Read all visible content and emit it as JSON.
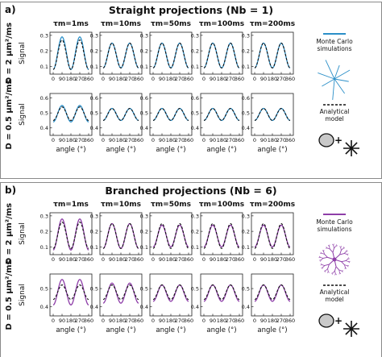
{
  "figure": {
    "panels": [
      {
        "key": "a",
        "label": "a)",
        "title": "Straight projections (Nb = 1)",
        "sim_color": "#2b8fc8",
        "illustration": "straight-projections-cell",
        "legend": {
          "sim": "Monte Carlo simulations",
          "model": "Analytical model"
        },
        "rows": [
          {
            "d_label": "D = 2 μm²/ms",
            "ylabel": "Signal"
          },
          {
            "d_label": "D = 0.5 μm²/ms",
            "ylabel": "Signal"
          }
        ]
      },
      {
        "key": "b",
        "label": "b)",
        "title": "Branched projections (Nb = 6)",
        "sim_color": "#8e3ea8",
        "illustration": "branched-projections-cell",
        "legend": {
          "sim": "Monte Carlo simulations",
          "model": "Analytical model"
        },
        "rows": [
          {
            "d_label": "D = 2 μm²/ms",
            "ylabel": "Signal"
          },
          {
            "d_label": "D = 0.5 μm²/ms",
            "ylabel": "Signal"
          }
        ]
      }
    ],
    "columns": [
      "τm=1ms",
      "τm=10ms",
      "τm=50ms",
      "τm=100ms",
      "τm=200ms"
    ],
    "xlabel": "angle (°)",
    "xticks": [
      "0",
      "90",
      "180",
      "270",
      "360"
    ]
  },
  "chart_data": [
    {
      "panel": "a",
      "row": "D = 2 μm²/ms",
      "type": "line",
      "x": [
        0,
        90,
        180,
        270,
        360
      ],
      "xlim": [
        0,
        360
      ],
      "yticks": [
        "0.1",
        "0.2",
        "0.3"
      ],
      "ylim": [
        0.05,
        0.32
      ],
      "series": [
        {
          "name": "Monte Carlo simulations",
          "columns": [
            {
              "max": 0.29,
              "min": 0.08
            },
            {
              "max": 0.25,
              "min": 0.09
            },
            {
              "max": 0.25,
              "min": 0.09
            },
            {
              "max": 0.25,
              "min": 0.09
            },
            {
              "max": 0.25,
              "min": 0.09
            }
          ]
        },
        {
          "name": "Analytical model",
          "columns": [
            {
              "max": 0.27,
              "min": 0.08
            },
            {
              "max": 0.25,
              "min": 0.09
            },
            {
              "max": 0.25,
              "min": 0.09
            },
            {
              "max": 0.25,
              "min": 0.09
            },
            {
              "max": 0.25,
              "min": 0.09
            }
          ]
        }
      ]
    },
    {
      "panel": "a",
      "row": "D = 0.5 μm²/ms",
      "type": "line",
      "x": [
        0,
        90,
        180,
        270,
        360
      ],
      "xlim": [
        0,
        360
      ],
      "yticks": [
        "0.4",
        "0.5",
        "0.6"
      ],
      "ylim": [
        0.35,
        0.63
      ],
      "series": [
        {
          "name": "Monte Carlo simulations",
          "columns": [
            {
              "max": 0.55,
              "min": 0.44
            },
            {
              "max": 0.53,
              "min": 0.45
            },
            {
              "max": 0.53,
              "min": 0.45
            },
            {
              "max": 0.53,
              "min": 0.45
            },
            {
              "max": 0.53,
              "min": 0.45
            }
          ]
        },
        {
          "name": "Analytical model",
          "columns": [
            {
              "max": 0.54,
              "min": 0.45
            },
            {
              "max": 0.53,
              "min": 0.45
            },
            {
              "max": 0.53,
              "min": 0.45
            },
            {
              "max": 0.53,
              "min": 0.45
            },
            {
              "max": 0.53,
              "min": 0.45
            }
          ]
        }
      ]
    },
    {
      "panel": "b",
      "row": "D = 2 μm²/ms",
      "type": "line",
      "x": [
        0,
        90,
        180,
        270,
        360
      ],
      "xlim": [
        0,
        360
      ],
      "yticks": [
        "0.1",
        "0.2",
        "0.3"
      ],
      "ylim": [
        0.05,
        0.32
      ],
      "series": [
        {
          "name": "Monte Carlo simulations",
          "columns": [
            {
              "max": 0.28,
              "min": 0.08
            },
            {
              "max": 0.25,
              "min": 0.09
            },
            {
              "max": 0.24,
              "min": 0.1
            },
            {
              "max": 0.24,
              "min": 0.1
            },
            {
              "max": 0.24,
              "min": 0.1
            }
          ]
        },
        {
          "name": "Analytical model",
          "columns": [
            {
              "max": 0.26,
              "min": 0.09
            },
            {
              "max": 0.25,
              "min": 0.09
            },
            {
              "max": 0.25,
              "min": 0.09
            },
            {
              "max": 0.25,
              "min": 0.09
            },
            {
              "max": 0.25,
              "min": 0.09
            }
          ]
        }
      ]
    },
    {
      "panel": "b",
      "row": "D = 0.5 μm²/ms",
      "type": "line",
      "x": [
        0,
        90,
        180,
        270,
        360
      ],
      "xlim": [
        0,
        360
      ],
      "yticks": [
        "0.4",
        "0.5"
      ],
      "ylim": [
        0.35,
        0.58
      ],
      "series": [
        {
          "name": "Monte Carlo simulations",
          "columns": [
            {
              "max": 0.55,
              "min": 0.41
            },
            {
              "max": 0.53,
              "min": 0.42
            },
            {
              "max": 0.52,
              "min": 0.43
            },
            {
              "max": 0.52,
              "min": 0.43
            },
            {
              "max": 0.52,
              "min": 0.43
            }
          ]
        },
        {
          "name": "Analytical model",
          "columns": [
            {
              "max": 0.52,
              "min": 0.44
            },
            {
              "max": 0.52,
              "min": 0.44
            },
            {
              "max": 0.52,
              "min": 0.44
            },
            {
              "max": 0.52,
              "min": 0.44
            },
            {
              "max": 0.52,
              "min": 0.44
            }
          ]
        }
      ]
    }
  ]
}
